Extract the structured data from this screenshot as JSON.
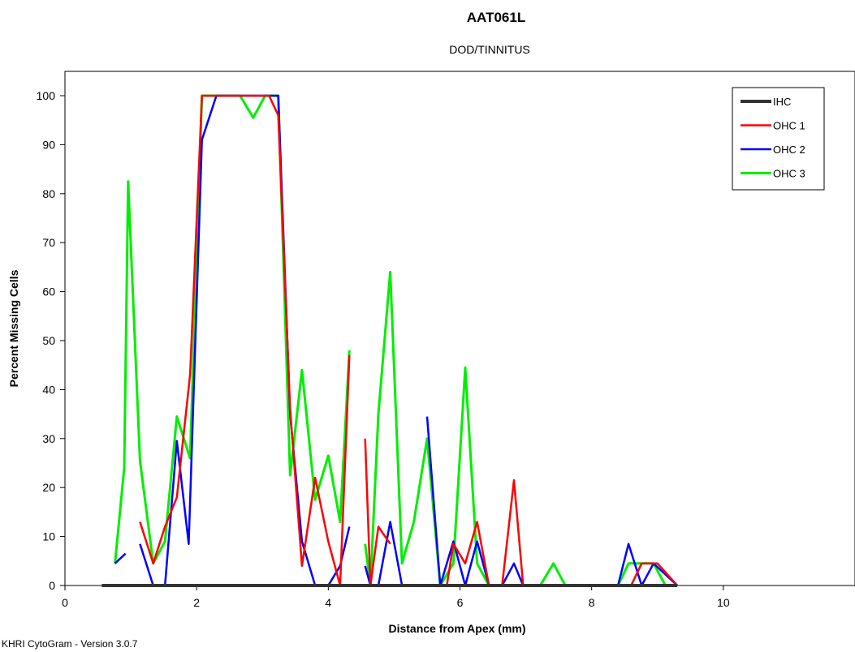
{
  "chart_data": {
    "type": "line",
    "title": "AAT061L",
    "subtitle": "DOD/TINNITUS",
    "xlabel": "Distance from Apex (mm)",
    "ylabel": "Percent Missing Cells",
    "xlim": [
      0,
      12
    ],
    "ylim": [
      0,
      105
    ],
    "xticks": [
      0,
      2,
      4,
      6,
      8,
      10
    ],
    "yticks": [
      0,
      10,
      20,
      30,
      40,
      50,
      60,
      70,
      80,
      90,
      100
    ],
    "grid": false,
    "legend_position": "top-right",
    "series": [
      {
        "name": "IHC",
        "color": "#333333",
        "width": 4,
        "segments": [
          [
            [
              0.56,
              0
            ],
            [
              9.3,
              0
            ]
          ]
        ]
      },
      {
        "name": "OHC 1",
        "color": "#ff0000",
        "width": 2.5,
        "segments": [
          [
            [
              0.76,
              0
            ],
            [
              0.9,
              0
            ]
          ],
          [
            [
              1.14,
              13
            ],
            [
              1.34,
              4.5
            ],
            [
              1.52,
              12
            ],
            [
              1.7,
              18
            ],
            [
              1.9,
              43
            ],
            [
              2.08,
              100
            ],
            [
              2.3,
              100
            ],
            [
              2.5,
              100
            ],
            [
              2.7,
              100
            ],
            [
              2.9,
              100
            ],
            [
              3.1,
              100
            ],
            [
              3.24,
              96
            ],
            [
              3.42,
              36
            ],
            [
              3.6,
              4
            ],
            [
              3.8,
              22
            ],
            [
              4.0,
              9
            ],
            [
              4.18,
              0
            ],
            [
              4.32,
              47
            ]
          ],
          [
            [
              4.56,
              30
            ],
            [
              4.64,
              0
            ],
            [
              4.76,
              12
            ],
            [
              4.94,
              8.5
            ]
          ],
          [
            [
              5.8,
              0
            ],
            [
              5.9,
              8.5
            ],
            [
              6.08,
              4.5
            ],
            [
              6.26,
              13
            ],
            [
              6.44,
              0
            ]
          ],
          [
            [
              6.64,
              0
            ],
            [
              6.82,
              21.5
            ],
            [
              6.96,
              0
            ],
            [
              8.6,
              0
            ],
            [
              8.76,
              4.5
            ],
            [
              9.0,
              4.5
            ],
            [
              9.3,
              0
            ]
          ]
        ]
      },
      {
        "name": "OHC 2",
        "color": "#0000ff",
        "width": 2.5,
        "segments": [
          [
            [
              0.76,
              4.5
            ],
            [
              0.92,
              6.5
            ]
          ],
          [
            [
              1.14,
              8.5
            ],
            [
              1.34,
              0
            ],
            [
              1.52,
              0
            ],
            [
              1.7,
              29.5
            ],
            [
              1.88,
              8.5
            ],
            [
              2.08,
              91
            ],
            [
              2.3,
              100
            ],
            [
              2.5,
              100
            ],
            [
              2.7,
              100
            ],
            [
              2.9,
              100
            ],
            [
              3.1,
              100
            ],
            [
              3.24,
              100
            ],
            [
              3.42,
              35
            ],
            [
              3.6,
              9
            ],
            [
              3.8,
              0
            ],
            [
              4.0,
              0
            ],
            [
              4.18,
              4
            ],
            [
              4.32,
              12
            ]
          ],
          [
            [
              4.56,
              4
            ],
            [
              4.64,
              0
            ],
            [
              4.76,
              0
            ],
            [
              4.94,
              13
            ],
            [
              5.12,
              0
            ]
          ],
          [
            [
              5.5,
              34.5
            ],
            [
              5.7,
              0
            ],
            [
              5.9,
              9
            ],
            [
              6.08,
              0
            ],
            [
              6.26,
              9
            ],
            [
              6.44,
              0
            ]
          ],
          [
            [
              6.64,
              0
            ],
            [
              6.82,
              4.5
            ],
            [
              6.96,
              0
            ],
            [
              8.4,
              0
            ],
            [
              8.56,
              8.5
            ],
            [
              8.76,
              0
            ],
            [
              8.94,
              4.5
            ],
            [
              9.3,
              0
            ]
          ]
        ]
      },
      {
        "name": "OHC 3",
        "color": "#00ee00",
        "width": 3,
        "segments": [
          [
            [
              0.76,
              4.5
            ],
            [
              0.9,
              24
            ],
            [
              0.96,
              82.5
            ],
            [
              1.14,
              25.5
            ],
            [
              1.34,
              4.5
            ],
            [
              1.52,
              9
            ],
            [
              1.7,
              34.5
            ],
            [
              1.9,
              26
            ],
            [
              2.08,
              100
            ],
            [
              2.3,
              100
            ],
            [
              2.5,
              100
            ],
            [
              2.66,
              100
            ],
            [
              2.86,
              95.5
            ],
            [
              3.04,
              100
            ],
            [
              3.24,
              100
            ],
            [
              3.42,
              22.5
            ],
            [
              3.6,
              44
            ],
            [
              3.8,
              17.5
            ],
            [
              4.0,
              26.5
            ],
            [
              4.18,
              13
            ],
            [
              4.32,
              48
            ]
          ],
          [
            [
              4.56,
              8.5
            ],
            [
              4.64,
              0
            ],
            [
              4.76,
              35
            ],
            [
              4.94,
              64
            ],
            [
              5.12,
              4.5
            ],
            [
              5.3,
              13
            ],
            [
              5.5,
              30
            ],
            [
              5.7,
              0
            ],
            [
              5.9,
              4.5
            ],
            [
              6.08,
              44.5
            ],
            [
              6.26,
              4.5
            ],
            [
              6.44,
              0
            ]
          ],
          [
            [
              6.64,
              0
            ],
            [
              7.22,
              0
            ],
            [
              7.42,
              4.5
            ],
            [
              7.6,
              0
            ],
            [
              8.4,
              0
            ],
            [
              8.56,
              4.5
            ],
            [
              8.76,
              4.5
            ],
            [
              8.94,
              4.5
            ],
            [
              9.12,
              0
            ],
            [
              9.3,
              0
            ]
          ]
        ]
      }
    ]
  },
  "footer": "KHRI CytoGram - Version 3.0.7"
}
